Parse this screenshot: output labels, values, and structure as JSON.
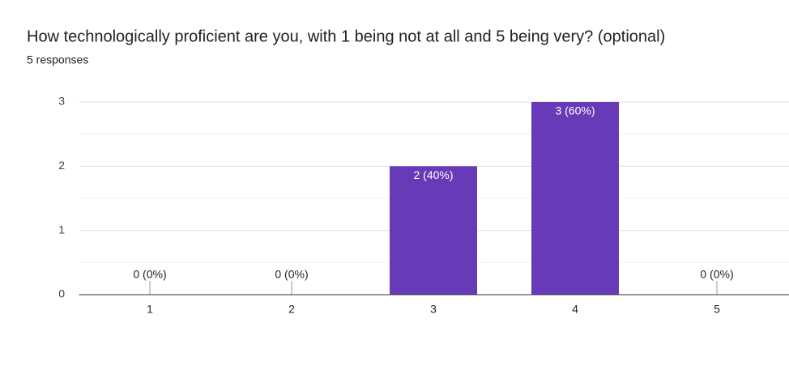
{
  "chart_data": {
    "type": "bar",
    "title": "How technologically proficient are you, with 1 being not at all and 5 being very? (optional)",
    "subtitle": "5 responses",
    "categories": [
      "1",
      "2",
      "3",
      "4",
      "5"
    ],
    "values": [
      0,
      0,
      2,
      3,
      0
    ],
    "value_labels": [
      "0 (0%)",
      "0 (0%)",
      "2 (40%)",
      "3 (60%)",
      "0 (0%)"
    ],
    "color": "#673ab7",
    "ylim": [
      0,
      3
    ],
    "yticks": [
      0,
      1,
      2,
      3
    ],
    "minor_yticks": [
      0.5,
      1.5,
      2.5
    ],
    "grid": true
  }
}
